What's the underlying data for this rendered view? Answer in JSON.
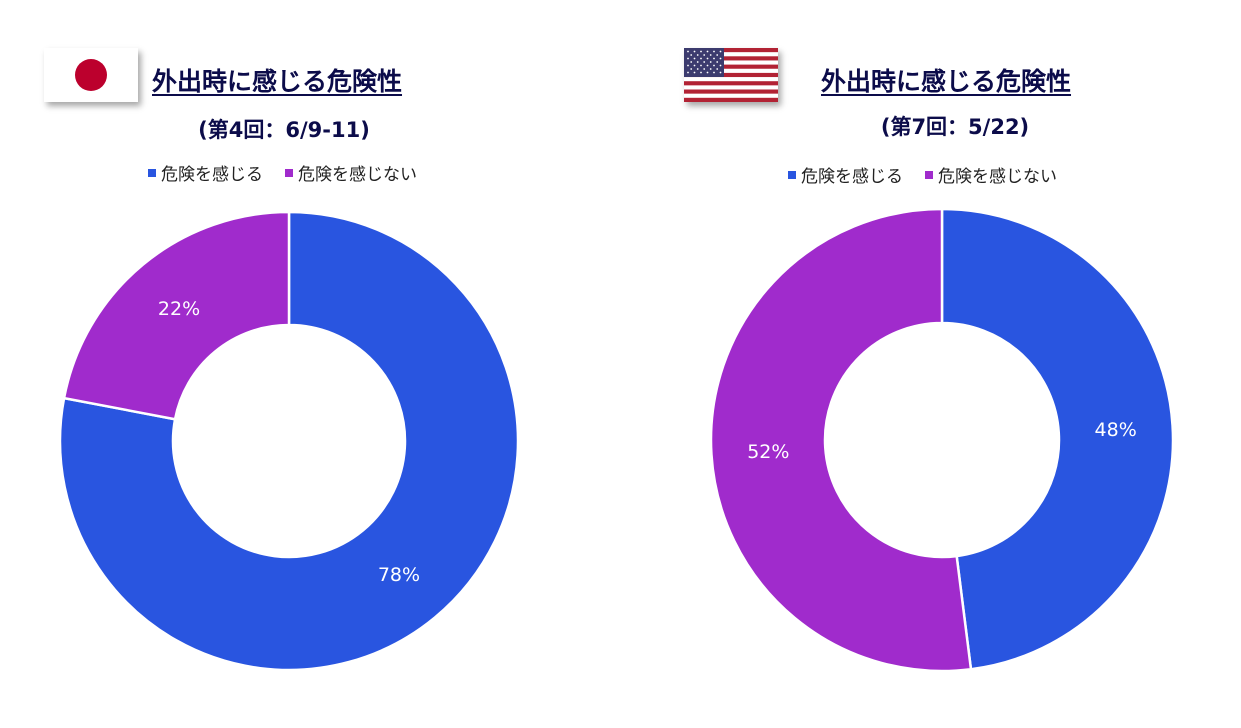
{
  "colors": {
    "danger": "#2955e0",
    "no_danger": "#a02bcc",
    "label": "#ffffff"
  },
  "chart_data": [
    {
      "type": "pie",
      "variant": "donut",
      "country_icon": "japan-flag-icon",
      "title": "外出時に感じる危険性",
      "subtitle": "(第4回：6/9-11)",
      "legend": [
        "危険を感じる",
        "危険を感じない"
      ],
      "legend_placement": "top",
      "values": [
        78,
        22
      ],
      "labels": [
        "78%",
        "22%"
      ],
      "colors": [
        "#2955e0",
        "#a02bcc"
      ]
    },
    {
      "type": "pie",
      "variant": "donut",
      "country_icon": "usa-flag-icon",
      "title": "外出時に感じる危険性",
      "subtitle": "(第7回：5/22)",
      "legend": [
        "危険を感じる",
        "危険を感じない"
      ],
      "legend_placement": "top",
      "values": [
        48,
        52
      ],
      "labels": [
        "48%",
        "52%"
      ],
      "colors": [
        "#2955e0",
        "#a02bcc"
      ]
    }
  ]
}
